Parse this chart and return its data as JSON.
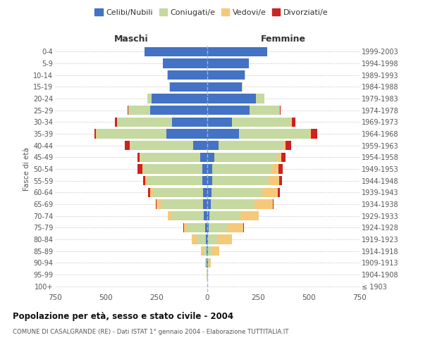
{
  "age_groups": [
    "100+",
    "95-99",
    "90-94",
    "85-89",
    "80-84",
    "75-79",
    "70-74",
    "65-69",
    "60-64",
    "55-59",
    "50-54",
    "45-49",
    "40-44",
    "35-39",
    "30-34",
    "25-29",
    "20-24",
    "15-19",
    "10-14",
    "5-9",
    "0-4"
  ],
  "birth_years": [
    "≤ 1903",
    "1904-1908",
    "1909-1913",
    "1914-1918",
    "1919-1923",
    "1924-1928",
    "1929-1933",
    "1934-1938",
    "1939-1943",
    "1944-1948",
    "1949-1953",
    "1954-1958",
    "1959-1963",
    "1964-1968",
    "1969-1973",
    "1974-1978",
    "1979-1983",
    "1984-1988",
    "1989-1993",
    "1994-1998",
    "1999-2003"
  ],
  "maschi": {
    "celibi": [
      0,
      0,
      2,
      3,
      8,
      10,
      18,
      20,
      22,
      24,
      26,
      35,
      70,
      200,
      175,
      280,
      275,
      185,
      195,
      220,
      310
    ],
    "coniugati": [
      0,
      2,
      5,
      15,
      45,
      90,
      155,
      210,
      245,
      270,
      290,
      295,
      310,
      345,
      270,
      110,
      20,
      3,
      2,
      0,
      0
    ],
    "vedovi": [
      0,
      1,
      4,
      12,
      25,
      15,
      20,
      20,
      15,
      10,
      5,
      3,
      2,
      2,
      1,
      0,
      0,
      0,
      0,
      0,
      0
    ],
    "divorziati": [
      0,
      0,
      0,
      0,
      0,
      2,
      3,
      5,
      10,
      12,
      22,
      10,
      25,
      10,
      8,
      2,
      0,
      0,
      0,
      0,
      0
    ]
  },
  "femmine": {
    "nubili": [
      0,
      0,
      2,
      3,
      5,
      8,
      12,
      18,
      22,
      23,
      25,
      35,
      55,
      155,
      120,
      210,
      240,
      170,
      185,
      205,
      295
    ],
    "coniugate": [
      0,
      2,
      5,
      20,
      45,
      90,
      150,
      215,
      250,
      280,
      295,
      310,
      320,
      350,
      290,
      145,
      40,
      5,
      2,
      0,
      0
    ],
    "vedove": [
      1,
      3,
      12,
      35,
      70,
      80,
      90,
      90,
      75,
      50,
      30,
      20,
      12,
      5,
      5,
      2,
      0,
      0,
      0,
      0,
      0
    ],
    "divorziate": [
      0,
      0,
      0,
      0,
      1,
      2,
      3,
      5,
      12,
      15,
      20,
      22,
      25,
      30,
      18,
      5,
      2,
      0,
      0,
      0,
      0
    ]
  },
  "colors": {
    "celibi": "#4472c4",
    "coniugati": "#c5d9a0",
    "vedovi": "#f5c97a",
    "divorziati": "#cc2222"
  },
  "xlim": 750,
  "title": "Popolazione per età, sesso e stato civile - 2004",
  "subtitle": "COMUNE DI CASALGRANDE (RE) - Dati ISTAT 1° gennaio 2004 - Elaborazione TUTTITALIA.IT",
  "ylabel_left": "Fasce di età",
  "legend_labels": [
    "Celibi/Nubili",
    "Coniugati/e",
    "Vedovi/e",
    "Divorziati/e"
  ],
  "maschi_label": "Maschi",
  "femmine_label": "Femmine",
  "background_color": "#ffffff",
  "grid_color": "#cccccc"
}
